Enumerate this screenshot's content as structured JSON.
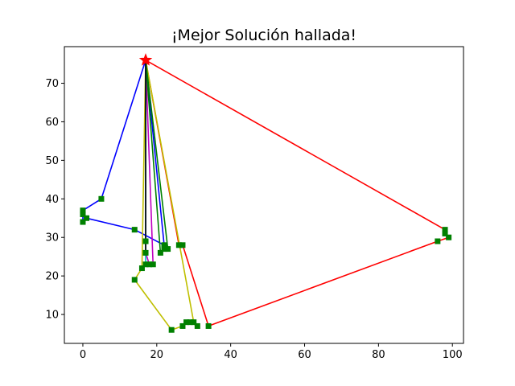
{
  "chart_data": {
    "type": "line",
    "title": "¡Mejor Solución hallada!",
    "xlabel": "",
    "ylabel": "",
    "xlim": [
      -5,
      103
    ],
    "ylim": [
      2.5,
      79.5
    ],
    "xticks": [
      0,
      20,
      40,
      60,
      80,
      100
    ],
    "yticks": [
      10,
      20,
      30,
      40,
      50,
      60,
      70
    ],
    "grid": false,
    "depot": {
      "x": 17,
      "y": 76,
      "marker": "star",
      "color": "#ff0000"
    },
    "customer_marker": {
      "shape": "square",
      "color": "#008000"
    },
    "series": [
      {
        "color": "#0000ff",
        "points": [
          [
            17,
            76
          ],
          [
            5,
            40
          ],
          [
            0,
            37
          ],
          [
            0,
            36
          ],
          [
            0,
            34
          ],
          [
            1,
            35
          ],
          [
            14,
            32
          ],
          [
            22,
            28
          ],
          [
            17,
            76
          ]
        ]
      },
      {
        "color": "#ff0000",
        "points": [
          [
            17,
            76
          ],
          [
            98,
            32
          ],
          [
            98,
            31
          ],
          [
            99,
            30
          ],
          [
            96,
            29
          ],
          [
            34,
            7
          ],
          [
            27,
            28
          ],
          [
            26,
            28
          ],
          [
            17,
            76
          ]
        ]
      },
      {
        "color": "#bfbf00",
        "points": [
          [
            17,
            76
          ],
          [
            16,
            22
          ],
          [
            14,
            19
          ],
          [
            24,
            6
          ],
          [
            27,
            7
          ],
          [
            28,
            8
          ],
          [
            29,
            8
          ],
          [
            31,
            7
          ],
          [
            30,
            8
          ],
          [
            17,
            76
          ]
        ]
      },
      {
        "color": "#bf00bf",
        "points": [
          [
            17,
            76
          ],
          [
            19,
            23
          ],
          [
            18,
            23
          ],
          [
            17,
            26
          ],
          [
            17,
            29
          ],
          [
            17,
            76
          ]
        ]
      },
      {
        "color": "#008000",
        "points": [
          [
            17,
            76
          ],
          [
            23,
            27
          ],
          [
            22,
            27
          ],
          [
            21,
            26
          ],
          [
            17,
            76
          ]
        ]
      },
      {
        "color": "#00bfbf",
        "points": [
          [
            17,
            76
          ],
          [
            17,
            23
          ],
          [
            17,
            76
          ]
        ]
      },
      {
        "color": "#000000",
        "points": [
          [
            17,
            76
          ],
          [
            17,
            26
          ],
          [
            17,
            76
          ]
        ]
      }
    ],
    "customers": [
      [
        5,
        40
      ],
      [
        0,
        37
      ],
      [
        0,
        36
      ],
      [
        0,
        34
      ],
      [
        1,
        35
      ],
      [
        14,
        32
      ],
      [
        22,
        28
      ],
      [
        98,
        32
      ],
      [
        98,
        31
      ],
      [
        99,
        30
      ],
      [
        96,
        29
      ],
      [
        34,
        7
      ],
      [
        27,
        28
      ],
      [
        26,
        28
      ],
      [
        16,
        22
      ],
      [
        14,
        19
      ],
      [
        24,
        6
      ],
      [
        27,
        7
      ],
      [
        28,
        8
      ],
      [
        29,
        8
      ],
      [
        31,
        7
      ],
      [
        30,
        8
      ],
      [
        19,
        23
      ],
      [
        18,
        23
      ],
      [
        17,
        26
      ],
      [
        17,
        29
      ],
      [
        23,
        27
      ],
      [
        22,
        27
      ],
      [
        21,
        26
      ],
      [
        17,
        23
      ]
    ]
  }
}
